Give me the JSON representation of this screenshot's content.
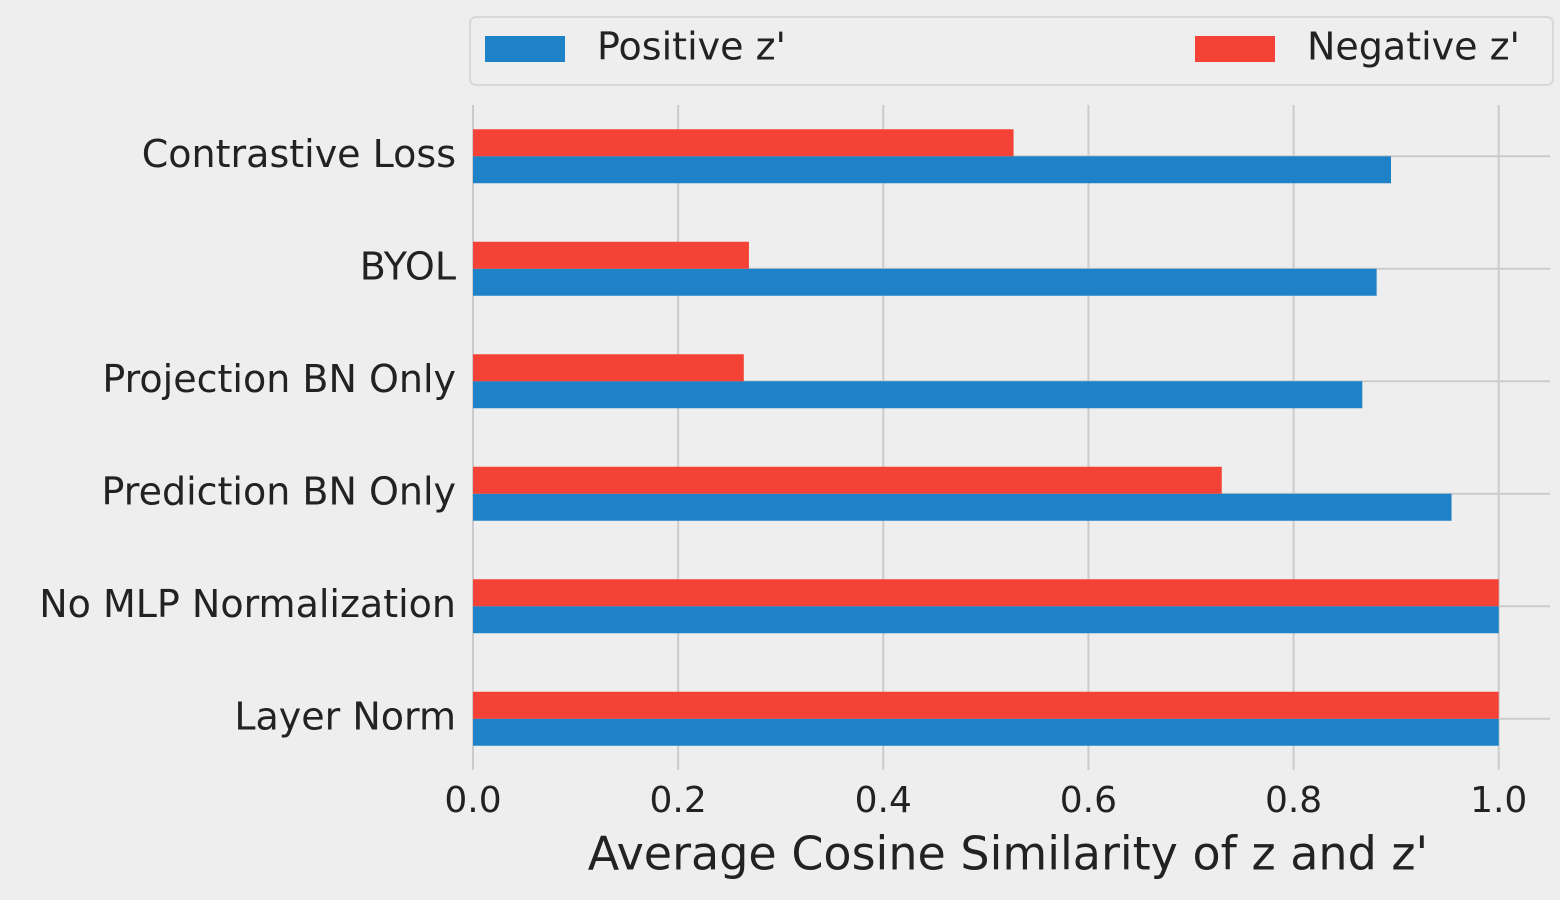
{
  "chart_data": {
    "type": "barh",
    "xlabel": "Average Cosine Similarity of z and z'",
    "categories": [
      "Contrastive Loss",
      "BYOL",
      "Projection BN Only",
      "Prediction BN Only",
      "No MLP Normalization",
      "Layer Norm"
    ],
    "series": [
      {
        "name": "Positive z'",
        "color": "#1e82c8",
        "values": [
          0.895,
          0.881,
          0.867,
          0.954,
          1.0,
          1.0
        ]
      },
      {
        "name": "Negative z'",
        "color": "#f44336",
        "values": [
          0.527,
          0.269,
          0.264,
          0.73,
          1.0,
          1.0
        ]
      }
    ],
    "xlim": [
      0,
      1.05
    ],
    "xticks": [
      {
        "value": 0,
        "label": "0.0"
      },
      0.2,
      0.4,
      0.6,
      0.8,
      {
        "value": 1,
        "label": "1.0"
      }
    ],
    "grid": true
  }
}
